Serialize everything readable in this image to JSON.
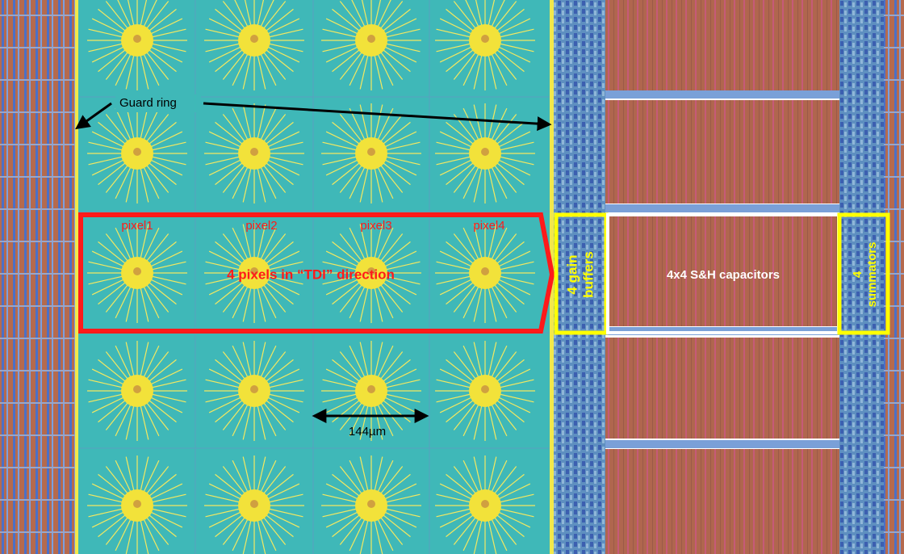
{
  "annotations": {
    "guard_ring": "Guard ring",
    "pixels": [
      "pixel1",
      "pixel2",
      "pixel3",
      "pixel4"
    ],
    "tdi": "4 pixels in “TDI” direction",
    "gain_buffers": [
      "4 gain",
      "buffers"
    ],
    "capacitors": "4x4 S&H capacitors",
    "summators": [
      "4",
      "summators"
    ],
    "pitch": "144µm"
  }
}
